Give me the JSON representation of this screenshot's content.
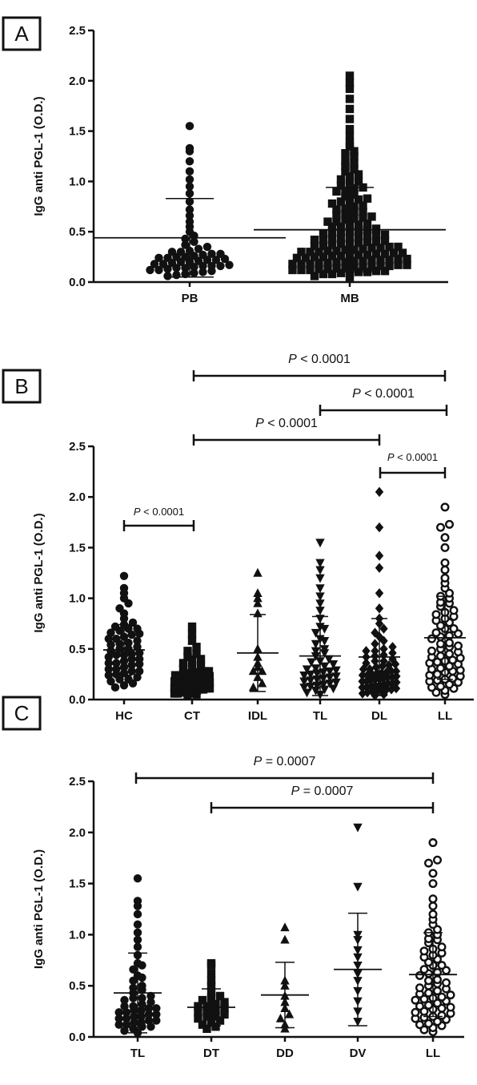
{
  "chart_data": [
    {
      "panel": "A",
      "type": "scatter",
      "ylabel": "IgG anti PGL-1 (O.D.)",
      "ylim": [
        0,
        2.5
      ],
      "yticks": [
        "0.0",
        "0.5",
        "1.0",
        "1.5",
        "2.0",
        "2.5"
      ],
      "categories": [
        "PB",
        "MB"
      ],
      "groups": [
        {
          "name": "PB",
          "marker": "circle",
          "mean": 0.44,
          "sd": 0.39,
          "values": [
            0.06,
            0.07,
            0.08,
            0.1,
            0.11,
            0.12,
            0.13,
            0.14,
            0.15,
            0.16,
            0.17,
            0.18,
            0.19,
            0.2,
            0.21,
            0.22,
            0.23,
            0.24,
            0.25,
            0.26,
            0.27,
            0.28,
            0.3,
            0.31,
            0.33,
            0.35,
            0.37,
            0.4,
            0.43,
            0.46,
            0.5,
            0.55,
            0.6,
            0.66,
            0.72,
            0.8,
            0.88,
            0.95,
            1.02,
            1.1,
            1.2,
            1.3,
            1.33,
            1.55,
            0.09,
            0.14,
            0.18,
            0.22,
            0.25,
            0.3,
            0.12,
            0.16,
            0.2,
            0.24,
            0.28,
            0.16
          ]
        },
        {
          "name": "MB",
          "marker": "square",
          "mean": 0.52,
          "sd": 0.42,
          "values": [
            0.05,
            0.06,
            0.08,
            0.09,
            0.1,
            0.11,
            0.12,
            0.13,
            0.14,
            0.15,
            0.16,
            0.17,
            0.18,
            0.19,
            0.2,
            0.21,
            0.22,
            0.23,
            0.24,
            0.25,
            0.26,
            0.27,
            0.28,
            0.29,
            0.3,
            0.31,
            0.32,
            0.34,
            0.35,
            0.36,
            0.38,
            0.4,
            0.41,
            0.43,
            0.45,
            0.47,
            0.49,
            0.51,
            0.53,
            0.55,
            0.57,
            0.6,
            0.62,
            0.65,
            0.68,
            0.7,
            0.73,
            0.76,
            0.8,
            0.83,
            0.87,
            0.9,
            0.94,
            0.98,
            1.02,
            1.07,
            1.12,
            1.18,
            1.25,
            1.3,
            1.38,
            1.45,
            1.52,
            1.62,
            1.72,
            1.82,
            1.92,
            1.98,
            2.05,
            0.09,
            0.12,
            0.15,
            0.18,
            0.2,
            0.22,
            0.25,
            0.27,
            0.3,
            0.33,
            0.36,
            0.4,
            0.44,
            0.48,
            0.52,
            0.58,
            0.63,
            0.7,
            0.78,
            0.85,
            0.93,
            1.0,
            1.1,
            1.2,
            0.1,
            0.13,
            0.16,
            0.19,
            0.23,
            0.26,
            0.29,
            0.32,
            0.35,
            0.39,
            0.43,
            0.47,
            0.55,
            0.6,
            0.67,
            0.75,
            0.82,
            0.9,
            0.96,
            1.05,
            1.15,
            1.28,
            1.35,
            0.08,
            0.11,
            0.14,
            0.17,
            0.21,
            0.24,
            0.28,
            0.31,
            0.37,
            0.42,
            0.46,
            0.5,
            0.56,
            0.64,
            0.72,
            0.8,
            0.12,
            0.15,
            0.18,
            0.22,
            0.26,
            0.3,
            0.34,
            0.38,
            0.42,
            0.5
          ]
        }
      ]
    },
    {
      "panel": "B",
      "type": "scatter",
      "ylabel": "IgG anti PGL-1 (O.D.)",
      "ylim": [
        0,
        2.5
      ],
      "yticks": [
        "0.0",
        "0.5",
        "1.0",
        "1.5",
        "2.0",
        "2.5"
      ],
      "categories": [
        "HC",
        "CT",
        "IDL",
        "TL",
        "DL",
        "LL"
      ],
      "groups": [
        {
          "name": "HC",
          "marker": "circle",
          "mean": 0.49,
          "sd": 0.25,
          "values": [
            0.12,
            0.14,
            0.16,
            0.18,
            0.2,
            0.22,
            0.24,
            0.26,
            0.28,
            0.3,
            0.32,
            0.34,
            0.36,
            0.38,
            0.4,
            0.42,
            0.44,
            0.46,
            0.48,
            0.5,
            0.52,
            0.54,
            0.56,
            0.58,
            0.6,
            0.62,
            0.64,
            0.66,
            0.68,
            0.7,
            0.72,
            0.74,
            0.76,
            0.8,
            0.85,
            0.9,
            0.95,
            1.0,
            1.05,
            1.1,
            1.22,
            0.25,
            0.35,
            0.45,
            0.55,
            0.65,
            0.3,
            0.4,
            0.5,
            0.6,
            0.7,
            0.2,
            0.28,
            0.36,
            0.44
          ]
        },
        {
          "name": "CT",
          "marker": "square",
          "mean": 0.23,
          "sd": 0.2,
          "values": [
            0.04,
            0.05,
            0.06,
            0.07,
            0.08,
            0.09,
            0.1,
            0.11,
            0.12,
            0.13,
            0.14,
            0.15,
            0.16,
            0.17,
            0.18,
            0.19,
            0.2,
            0.21,
            0.22,
            0.23,
            0.24,
            0.25,
            0.26,
            0.27,
            0.28,
            0.3,
            0.32,
            0.34,
            0.36,
            0.38,
            0.4,
            0.42,
            0.45,
            0.48,
            0.52,
            0.58,
            0.65,
            0.72,
            0.06,
            0.08,
            0.1,
            0.12,
            0.14,
            0.16,
            0.18,
            0.2,
            0.22,
            0.24,
            0.26,
            0.28,
            0.07,
            0.09,
            0.11,
            0.13,
            0.15,
            0.17,
            0.19,
            0.21
          ]
        },
        {
          "name": "IDL",
          "marker": "triangle-up",
          "mean": 0.46,
          "sd": 0.38,
          "values": [
            0.12,
            0.16,
            0.22,
            0.28,
            0.32,
            0.36,
            0.42,
            0.5,
            0.85,
            0.95,
            1.0,
            1.05,
            1.25,
            0.28
          ]
        },
        {
          "name": "TL",
          "marker": "triangle-down",
          "mean": 0.43,
          "sd": 0.39,
          "values": [
            0.05,
            0.07,
            0.09,
            0.11,
            0.13,
            0.15,
            0.17,
            0.19,
            0.21,
            0.23,
            0.25,
            0.27,
            0.29,
            0.31,
            0.33,
            0.35,
            0.37,
            0.4,
            0.43,
            0.46,
            0.5,
            0.55,
            0.6,
            0.66,
            0.72,
            0.8,
            0.88,
            0.95,
            1.02,
            1.1,
            1.2,
            1.28,
            1.35,
            1.55,
            0.1,
            0.14,
            0.18,
            0.22,
            0.26,
            0.3,
            0.12,
            0.16,
            0.2,
            0.24,
            0.28,
            0.38,
            0.48,
            0.58,
            0.7
          ]
        },
        {
          "name": "DL",
          "marker": "diamond",
          "mean": 0.42,
          "sd": 0.38,
          "values": [
            0.04,
            0.05,
            0.06,
            0.07,
            0.08,
            0.09,
            0.1,
            0.11,
            0.12,
            0.13,
            0.14,
            0.15,
            0.16,
            0.17,
            0.18,
            0.19,
            0.2,
            0.21,
            0.22,
            0.23,
            0.24,
            0.25,
            0.26,
            0.27,
            0.28,
            0.3,
            0.32,
            0.34,
            0.36,
            0.38,
            0.4,
            0.42,
            0.44,
            0.46,
            0.48,
            0.5,
            0.52,
            0.55,
            0.58,
            0.62,
            0.66,
            0.7,
            0.75,
            0.8,
            0.9,
            1.05,
            1.3,
            1.42,
            1.7,
            2.05,
            0.08,
            0.12,
            0.16,
            0.2,
            0.24,
            0.28,
            0.33,
            0.38,
            0.43,
            0.48,
            0.1,
            0.14,
            0.18,
            0.22,
            0.26,
            0.3,
            0.35
          ]
        },
        {
          "name": "LL",
          "marker": "circle-open",
          "mean": 0.61,
          "sd": 0.41,
          "values": [
            0.05,
            0.07,
            0.09,
            0.11,
            0.13,
            0.15,
            0.17,
            0.19,
            0.21,
            0.23,
            0.25,
            0.27,
            0.29,
            0.31,
            0.33,
            0.35,
            0.37,
            0.39,
            0.41,
            0.43,
            0.45,
            0.47,
            0.5,
            0.53,
            0.56,
            0.6,
            0.63,
            0.66,
            0.7,
            0.73,
            0.76,
            0.8,
            0.84,
            0.88,
            0.92,
            0.96,
            1.0,
            1.05,
            1.1,
            1.15,
            1.2,
            1.28,
            1.35,
            1.5,
            1.6,
            1.7,
            1.73,
            1.9,
            0.12,
            0.18,
            0.24,
            0.3,
            0.36,
            0.42,
            0.48,
            0.55,
            0.62,
            0.7,
            0.78,
            0.86,
            0.95,
            0.2,
            0.28,
            0.38,
            0.52,
            0.65,
            0.82,
            1.02
          ]
        }
      ],
      "comparisons": [
        {
          "from": "CT",
          "to": "LL",
          "label": "< 0.0001"
        },
        {
          "from": "TL",
          "to": "LL",
          "label": "< 0.0001"
        },
        {
          "from": "CT",
          "to": "DL",
          "label": "< 0.0001"
        },
        {
          "from": "DL",
          "to": "LL",
          "label": "< 0.0001"
        },
        {
          "from": "HC",
          "to": "CT",
          "label": "< 0.0001"
        }
      ]
    },
    {
      "panel": "C",
      "type": "scatter",
      "ylabel": "IgG anti PGL-1 (O.D.)",
      "ylim": [
        0,
        2.5
      ],
      "yticks": [
        "0.0",
        "0.5",
        "1.0",
        "1.5",
        "2.0",
        "2.5"
      ],
      "categories": [
        "TL",
        "DT",
        "DD",
        "DV",
        "LL"
      ],
      "groups": [
        {
          "name": "TL",
          "marker": "circle",
          "mean": 0.43,
          "sd": 0.39,
          "values": [
            0.04,
            0.06,
            0.08,
            0.1,
            0.12,
            0.14,
            0.16,
            0.18,
            0.2,
            0.22,
            0.24,
            0.26,
            0.28,
            0.3,
            0.32,
            0.34,
            0.36,
            0.38,
            0.4,
            0.43,
            0.46,
            0.5,
            0.55,
            0.6,
            0.66,
            0.72,
            0.8,
            0.88,
            0.95,
            1.02,
            1.1,
            1.2,
            1.28,
            1.33,
            1.55,
            0.1,
            0.14,
            0.18,
            0.22,
            0.26,
            0.3,
            0.12,
            0.16,
            0.2,
            0.24,
            0.28,
            0.38,
            0.48,
            0.58,
            0.7
          ]
        },
        {
          "name": "DT",
          "marker": "square",
          "mean": 0.29,
          "sd": 0.18,
          "values": [
            0.08,
            0.1,
            0.12,
            0.14,
            0.16,
            0.18,
            0.2,
            0.22,
            0.24,
            0.26,
            0.28,
            0.3,
            0.32,
            0.34,
            0.36,
            0.38,
            0.4,
            0.44,
            0.5,
            0.55,
            0.62,
            0.7,
            0.72,
            0.2,
            0.25,
            0.3
          ]
        },
        {
          "name": "DD",
          "marker": "triangle-up",
          "mean": 0.41,
          "sd": 0.32,
          "values": [
            0.08,
            0.12,
            0.18,
            0.22,
            0.28,
            0.34,
            0.4,
            0.5,
            0.55,
            0.95,
            1.07
          ]
        },
        {
          "name": "DV",
          "marker": "triangle-down",
          "mean": 0.66,
          "sd": 0.55,
          "values": [
            0.15,
            0.25,
            0.35,
            0.45,
            0.55,
            0.62,
            0.7,
            0.78,
            0.85,
            0.95,
            1.0,
            1.47,
            2.05
          ]
        },
        {
          "name": "LL",
          "marker": "circle-open",
          "mean": 0.61,
          "sd": 0.41,
          "values": [
            0.05,
            0.07,
            0.09,
            0.11,
            0.13,
            0.15,
            0.17,
            0.19,
            0.21,
            0.23,
            0.25,
            0.27,
            0.29,
            0.31,
            0.33,
            0.35,
            0.37,
            0.39,
            0.41,
            0.43,
            0.45,
            0.47,
            0.5,
            0.53,
            0.56,
            0.6,
            0.63,
            0.66,
            0.7,
            0.73,
            0.76,
            0.8,
            0.84,
            0.88,
            0.92,
            0.96,
            1.0,
            1.05,
            1.1,
            1.15,
            1.2,
            1.28,
            1.35,
            1.5,
            1.6,
            1.7,
            1.73,
            1.9,
            0.12,
            0.18,
            0.24,
            0.3,
            0.36,
            0.42,
            0.48,
            0.55,
            0.62,
            0.7,
            0.78,
            0.86,
            0.95,
            0.2,
            0.28,
            0.38,
            0.52,
            0.65,
            0.82,
            1.02
          ]
        }
      ],
      "comparisons": [
        {
          "from": "TL",
          "to": "LL",
          "label": "= 0.0007"
        },
        {
          "from": "DT",
          "to": "LL",
          "label": "= 0.0007"
        }
      ]
    }
  ],
  "p_symbol": "P"
}
